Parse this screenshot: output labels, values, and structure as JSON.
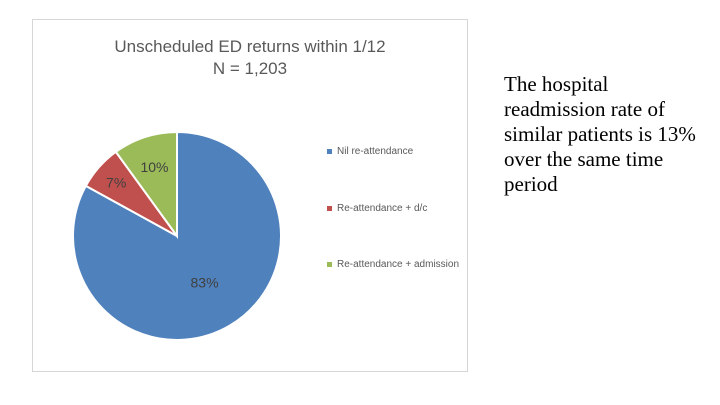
{
  "chart_data": {
    "type": "pie",
    "title": "Unscheduled ED returns within 1/12",
    "subtitle": "N = 1,203",
    "categories": [
      "Nil re-attendance",
      "Re-attendance + d/c",
      "Re-attendance + admission"
    ],
    "values": [
      83,
      7,
      10
    ],
    "labels": [
      "83%",
      "7%",
      "10%"
    ],
    "colors": [
      "#4f81bd",
      "#c0504d",
      "#9bbb59"
    ],
    "legend_position": "right"
  },
  "side_note": {
    "text": "The hospital readmission rate of similar patients is 13% over the same time period"
  }
}
